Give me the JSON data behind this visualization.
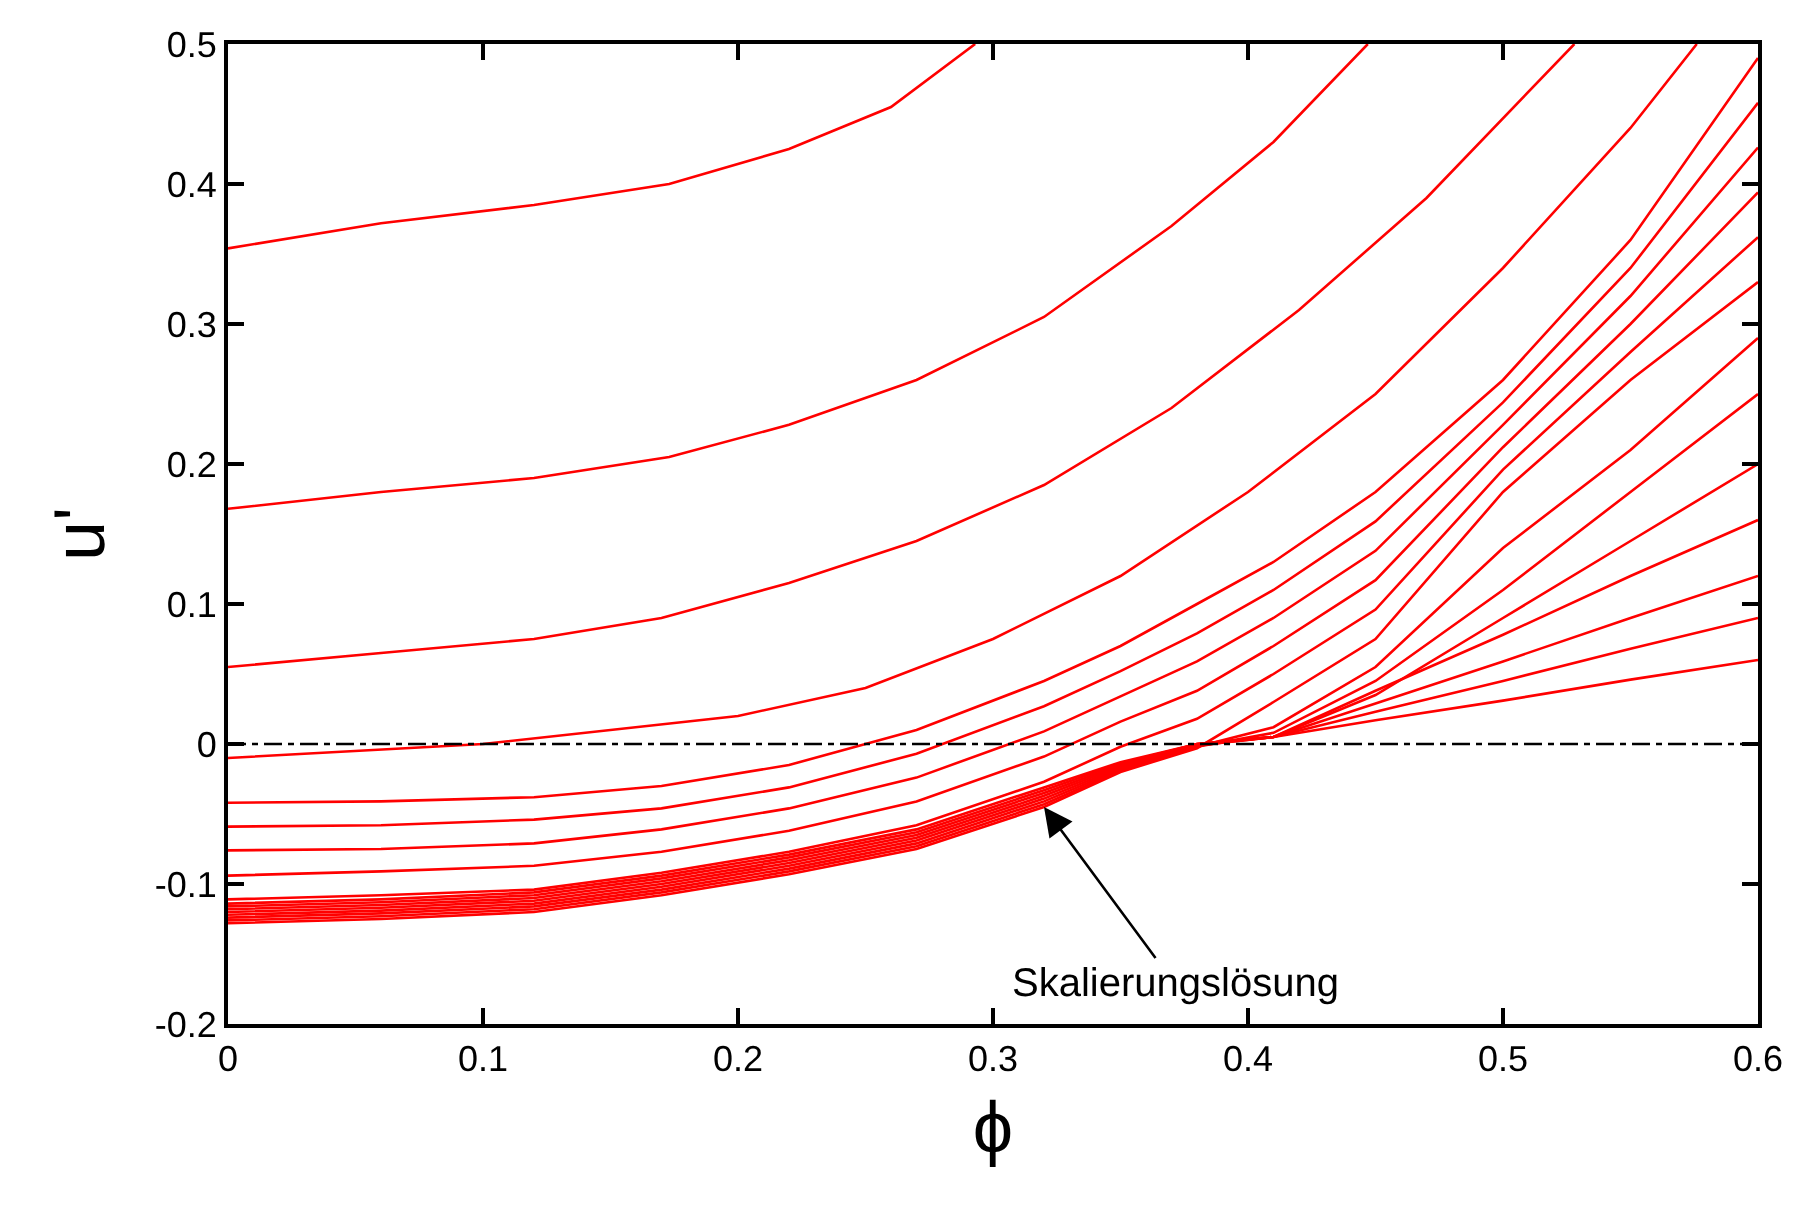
{
  "chart_data": {
    "type": "line",
    "xlabel": "ϕ",
    "ylabel": "u'",
    "x": [
      0,
      0.06,
      0.12,
      0.17,
      0.22,
      0.27,
      0.32,
      0.35,
      0.38,
      0.41,
      0.45,
      0.5,
      0.55,
      0.6
    ],
    "series": [
      {
        "color": "#ff0000",
        "x": [
          0,
          0.06,
          0.12,
          0.173,
          0.22,
          0.26,
          0.293
        ],
        "values": [
          0.354,
          0.372,
          0.385,
          0.4,
          0.425,
          0.455,
          0.5
        ]
      },
      {
        "color": "#ff0000",
        "x": [
          0,
          0.06,
          0.12,
          0.173,
          0.22,
          0.27,
          0.32,
          0.37,
          0.41,
          0.447
        ],
        "values": [
          0.168,
          0.18,
          0.19,
          0.205,
          0.228,
          0.26,
          0.305,
          0.37,
          0.43,
          0.5
        ]
      },
      {
        "color": "#ff0000",
        "x": [
          0,
          0.06,
          0.12,
          0.17,
          0.22,
          0.27,
          0.32,
          0.37,
          0.42,
          0.47,
          0.528
        ],
        "values": [
          0.055,
          0.065,
          0.075,
          0.09,
          0.115,
          0.145,
          0.185,
          0.24,
          0.31,
          0.39,
          0.5
        ]
      },
      {
        "color": "#ff0000",
        "x": [
          0,
          0.1,
          0.2,
          0.25,
          0.3,
          0.35,
          0.4,
          0.45,
          0.5,
          0.55,
          0.576
        ],
        "values": [
          -0.01,
          0.0,
          0.02,
          0.04,
          0.075,
          0.12,
          0.18,
          0.25,
          0.34,
          0.44,
          0.5
        ]
      },
      {
        "color": "#ff0000",
        "values": [
          -0.042,
          -0.041,
          -0.038,
          -0.03,
          -0.015,
          0.01,
          0.045,
          0.07,
          0.1,
          0.13,
          0.18,
          0.26,
          0.36,
          0.49
        ]
      },
      {
        "color": "#ff0000",
        "values": [
          -0.059,
          -0.058,
          -0.054,
          -0.046,
          -0.031,
          -0.007,
          0.027,
          0.052,
          0.079,
          0.11,
          0.159,
          0.244,
          0.34,
          0.458
        ]
      },
      {
        "color": "#ff0000",
        "values": [
          -0.076,
          -0.075,
          -0.071,
          -0.061,
          -0.046,
          -0.024,
          0.009,
          0.034,
          0.059,
          0.09,
          0.138,
          0.228,
          0.32,
          0.426
        ]
      },
      {
        "color": "#ff0000",
        "values": [
          -0.094,
          -0.091,
          -0.087,
          -0.077,
          -0.062,
          -0.041,
          -0.009,
          0.016,
          0.038,
          0.07,
          0.117,
          0.212,
          0.3,
          0.394
        ]
      },
      {
        "color": "#ff0000",
        "values": [
          -0.111,
          -0.108,
          -0.104,
          -0.092,
          -0.077,
          -0.058,
          -0.027,
          -0.002,
          0.018,
          0.05,
          0.096,
          0.196,
          0.28,
          0.362
        ]
      },
      {
        "color": "#ff0000",
        "values": [
          -0.128,
          -0.125,
          -0.12,
          -0.108,
          -0.093,
          -0.075,
          -0.045,
          -0.02,
          -0.003,
          0.03,
          0.075,
          0.18,
          0.26,
          0.33
        ]
      },
      {
        "color": "#ff0000",
        "values": [
          -0.126,
          -0.123,
          -0.118,
          -0.106,
          -0.091,
          -0.073,
          -0.043,
          -0.019,
          -0.002,
          0.012,
          0.055,
          0.14,
          0.21,
          0.29
        ]
      },
      {
        "color": "#ff0000",
        "values": [
          -0.124,
          -0.121,
          -0.116,
          -0.104,
          -0.089,
          -0.071,
          -0.041,
          -0.018,
          -0.002,
          0.008,
          0.045,
          0.11,
          0.18,
          0.25
        ]
      },
      {
        "color": "#ff0000",
        "values": [
          -0.122,
          -0.119,
          -0.114,
          -0.102,
          -0.087,
          -0.069,
          -0.039,
          -0.017,
          -0.001,
          0.005,
          0.035,
          0.09,
          0.145,
          0.2
        ]
      },
      {
        "color": "#ff0000",
        "values": [
          -0.12,
          -0.117,
          -0.112,
          -0.1,
          -0.085,
          -0.067,
          -0.037,
          -0.016,
          -0.001,
          0.005,
          0.038,
          0.078,
          0.12,
          0.16
        ]
      },
      {
        "color": "#ff0000",
        "values": [
          -0.118,
          -0.115,
          -0.11,
          -0.098,
          -0.083,
          -0.065,
          -0.035,
          -0.015,
          0.0,
          0.005,
          0.029,
          0.059,
          0.09,
          0.12
        ]
      },
      {
        "color": "#ff0000",
        "values": [
          -0.116,
          -0.113,
          -0.108,
          -0.096,
          -0.081,
          -0.063,
          -0.033,
          -0.014,
          0.0,
          0.005,
          0.023,
          0.045,
          0.068,
          0.09
        ]
      },
      {
        "color": "#ff0000",
        "values": [
          -0.114,
          -0.111,
          -0.106,
          -0.094,
          -0.079,
          -0.061,
          -0.031,
          -0.013,
          0.0,
          0.005,
          0.017,
          0.031,
          0.046,
          0.06
        ]
      }
    ],
    "xlim": [
      0,
      0.6
    ],
    "xticks": [
      0,
      0.1,
      0.2,
      0.3,
      0.4,
      0.5,
      0.6
    ],
    "ylim": [
      -0.2,
      0.5
    ],
    "yticks": [
      -0.2,
      -0.1,
      0,
      0.1,
      0.2,
      0.3,
      0.4,
      0.5
    ],
    "ref_lines": [
      {
        "axis": "y",
        "value": 0,
        "color": "#000000",
        "line_style": "dashdot"
      }
    ],
    "annotations": [
      {
        "text": "Skalierungslösung",
        "x": 0.32,
        "y": -0.045
      }
    ],
    "marker": "none",
    "line_style": "solid"
  }
}
